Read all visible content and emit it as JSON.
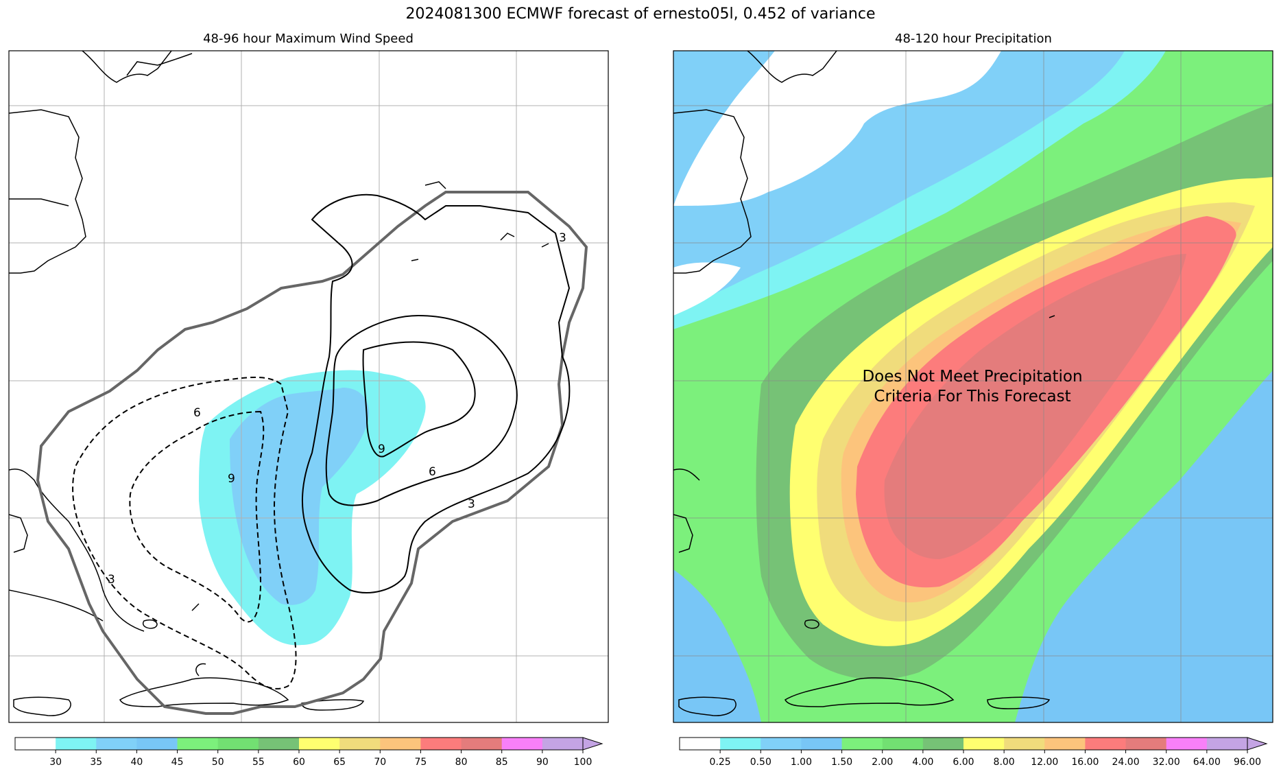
{
  "suptitle": "2024081300 ECMWF forecast of ernesto05l, 0.452 of variance",
  "left_panel": {
    "title": "48-96 hour Maximum Wind Speed",
    "contour_labels": [
      "6",
      "9",
      "3",
      "9",
      "6",
      "3",
      "3"
    ]
  },
  "right_panel": {
    "title": "48-120 hour Precipitation",
    "overlay_text_line1": "Does Not Meet Precipitation",
    "overlay_text_line2": "Criteria For This Forecast"
  },
  "colors": {
    "land_outline": "#000000",
    "gridline": "#b0b0b0",
    "contour_outer": "#666666",
    "cyan": "#7ef3f3",
    "lightblue": "#80d0f8",
    "blue": "#78c6f6",
    "green": "#7cf07c",
    "midgreen": "#72e072",
    "darkgreen": "#76c276",
    "yellow": "#ffff70",
    "tan": "#f0dc7c",
    "orange": "#fcc47c",
    "red": "#fc7c7c",
    "darkred": "#e47c7c",
    "magenta": "#f880f8",
    "lavender": "#c4a4e4"
  },
  "chart_data": [
    {
      "type": "heatmap",
      "title": "48-96 hour Maximum Wind Speed",
      "colorbar": {
        "ticks": [
          "30",
          "35",
          "40",
          "45",
          "50",
          "55",
          "60",
          "65",
          "70",
          "75",
          "80",
          "85",
          "90",
          "100"
        ],
        "bin_colors": [
          "#ffffff",
          "#7ef3f3",
          "#80d0f8",
          "#78c6f6",
          "#7cf07c",
          "#72e072",
          "#76c276",
          "#ffff70",
          "#f0dc7c",
          "#fcc47c",
          "#fc7c7c",
          "#e47c7c",
          "#f880f8",
          "#c4a4e4",
          "#c4a4e4"
        ],
        "extend": "max"
      },
      "contour_levels_shown": [
        3,
        6,
        9
      ],
      "grid": true
    },
    {
      "type": "heatmap",
      "title": "48-120 hour Precipitation",
      "colorbar": {
        "ticks": [
          "0.25",
          "0.50",
          "1.00",
          "1.50",
          "2.00",
          "4.00",
          "6.00",
          "8.00",
          "12.00",
          "16.00",
          "24.00",
          "32.00",
          "64.00",
          "96.00"
        ],
        "bin_colors": [
          "#ffffff",
          "#7ef3f3",
          "#80d0f8",
          "#78c6f6",
          "#7cf07c",
          "#72e072",
          "#76c276",
          "#ffff70",
          "#f0dc7c",
          "#fcc47c",
          "#fc7c7c",
          "#e47c7c",
          "#f880f8",
          "#c4a4e4",
          "#c4a4e4"
        ],
        "extend": "max"
      },
      "grid": true
    }
  ]
}
